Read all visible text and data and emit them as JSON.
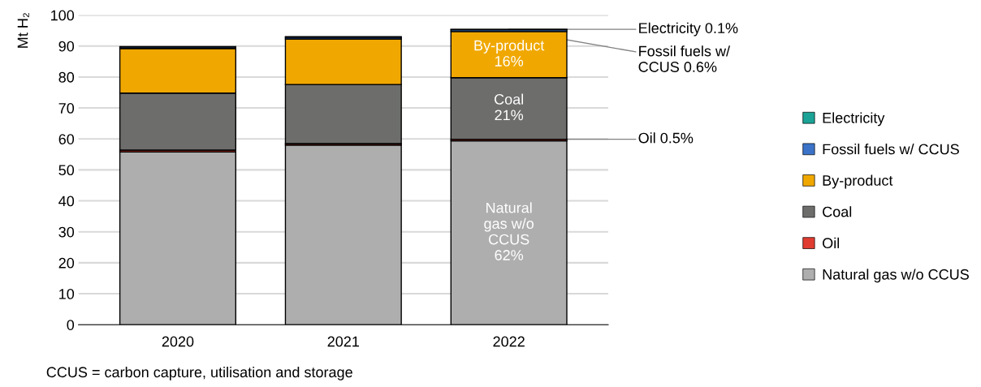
{
  "chart_data": {
    "type": "bar",
    "stacked": true,
    "ylabel": "Mt H₂",
    "categories": [
      "2020",
      "2021",
      "2022"
    ],
    "series": [
      {
        "name": "Natural gas w/o CCUS",
        "color": "#aeaeae",
        "values": [
          55.8,
          58.0,
          59.4
        ]
      },
      {
        "name": "Oil",
        "color": "#e03c31",
        "values": [
          0.6,
          0.5,
          0.5
        ]
      },
      {
        "name": "Coal",
        "color": "#6d6e6c",
        "values": [
          18.4,
          19.1,
          19.9
        ]
      },
      {
        "name": "By-product",
        "color": "#f0a800",
        "values": [
          14.4,
          14.7,
          14.9
        ]
      },
      {
        "name": "Fossil fuels w/ CCUS",
        "color": "#3a73c8",
        "values": [
          0.5,
          0.6,
          0.6
        ]
      },
      {
        "name": "Electricity",
        "color": "#1aa396",
        "values": [
          0.1,
          0.1,
          0.1
        ]
      }
    ],
    "ylim": [
      0,
      100
    ],
    "yticks": [
      0,
      10,
      20,
      30,
      40,
      50,
      60,
      70,
      80,
      90,
      100
    ],
    "grid": "y",
    "legend": "right",
    "annotations": [
      "Natural\ngas w/o\nCCUS\n62%",
      "Coal\n21%",
      "By-product\n16%",
      {
        "text": "Electricity 0.1%",
        "x": "2022",
        "y": 95.4
      },
      {
        "text": "Fossil fuels w/\nCCUS 0.6%",
        "x": "2022",
        "y": 95.3
      },
      {
        "text": "Oil 0.5%",
        "x": "2022",
        "y": 59.9
      },
      "CCUS = carbon capture, utilisation and storage"
    ]
  }
}
